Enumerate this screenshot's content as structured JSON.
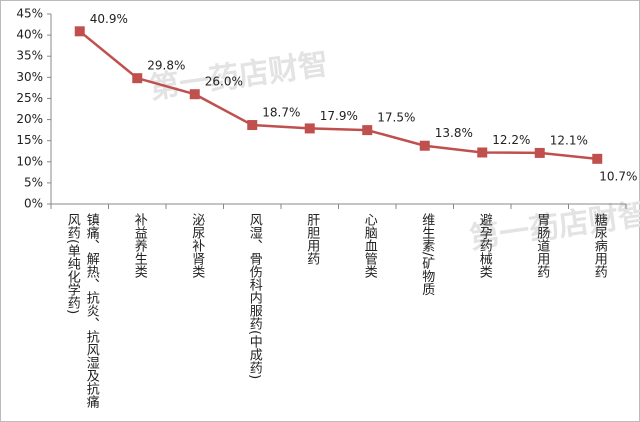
{
  "chart_data": {
    "type": "line",
    "watermark": "第一药店财智",
    "categories": [
      "镇痛、解热、抗炎、抗风湿及抗痛风药(单纯化学药)",
      "补益养生类",
      "泌尿补肾类",
      "风湿、骨伤科内服药(中成药)",
      "肝胆用药",
      "心脑血管类",
      "维生素/矿物质",
      "避孕药械类",
      "胃肠道用药",
      "糖尿病用药"
    ],
    "values": [
      40.9,
      29.8,
      26.0,
      18.7,
      17.9,
      17.5,
      13.8,
      12.2,
      12.1,
      10.7
    ],
    "value_labels": [
      "40.9%",
      "29.8%",
      "26.0%",
      "18.7%",
      "17.9%",
      "17.5%",
      "13.8%",
      "12.2%",
      "12.1%",
      "10.7%"
    ],
    "color": "#c0504d",
    "ylim": [
      0,
      45
    ],
    "yticks": [
      {
        "value": 0,
        "label": "0%"
      },
      {
        "value": 5,
        "label": "5%"
      },
      {
        "value": 10,
        "label": "10%"
      },
      {
        "value": 15,
        "label": "15%"
      },
      {
        "value": 20,
        "label": "20%"
      },
      {
        "value": 25,
        "label": "25%"
      },
      {
        "value": 30,
        "label": "30%"
      },
      {
        "value": 35,
        "label": "35%"
      },
      {
        "value": 40,
        "label": "40%"
      },
      {
        "value": 45,
        "label": "45%"
      }
    ],
    "grid": false
  }
}
